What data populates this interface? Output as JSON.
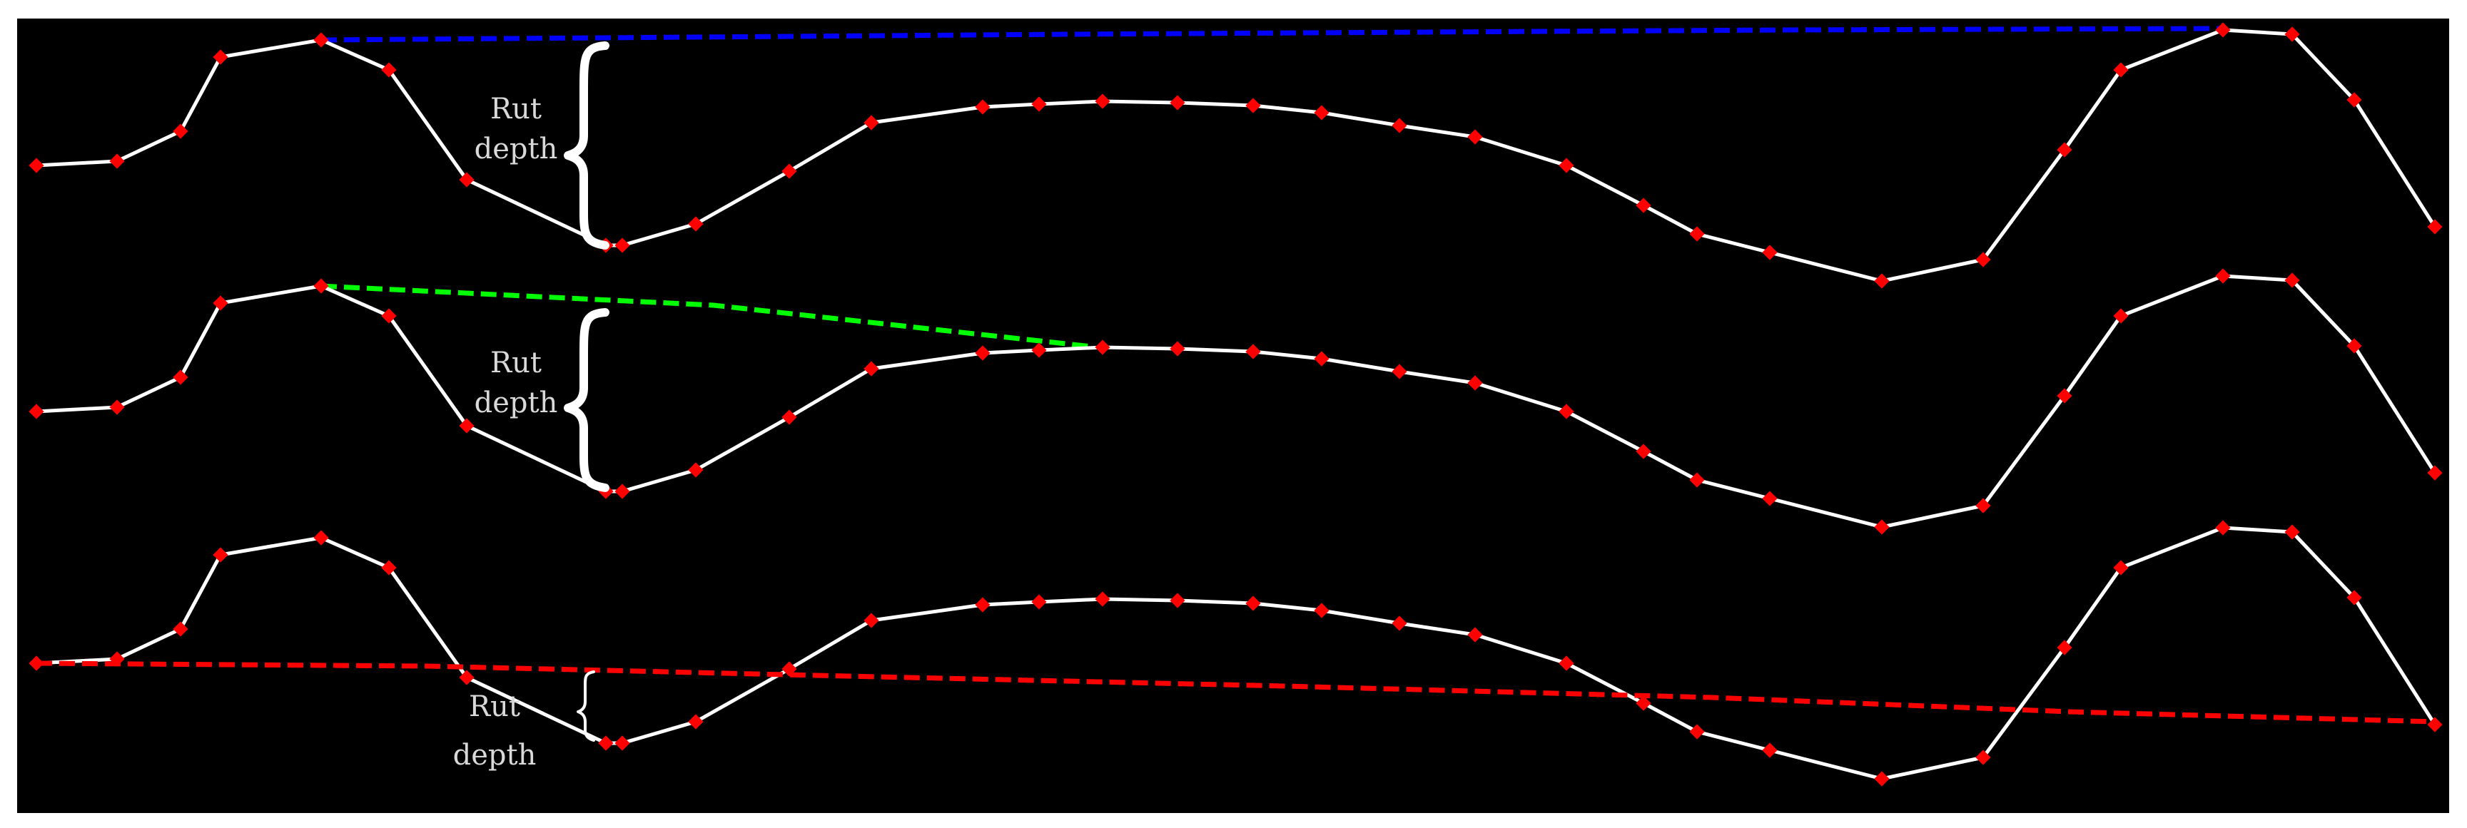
{
  "colors": {
    "background": "#000000",
    "frame": "#ffffff",
    "profile_line": "#ffffff",
    "profile_points": "#ff0000",
    "reference_line_1": "#0000ff",
    "reference_line_2": "#00ff00",
    "reference_line_3": "#ff0000",
    "label_text": "#d9d9d9"
  },
  "panels": [
    {
      "reference_line_style": "dashed",
      "reference_line_color": "#0000ff",
      "label_line1": "Rut",
      "label_line2": "depth"
    },
    {
      "reference_line_style": "dashed",
      "reference_line_color": "#00ff00",
      "label_line1": "Rut",
      "label_line2": "depth"
    },
    {
      "reference_line_style": "dashed",
      "reference_line_color": "#ff0000",
      "label_line1": "Rut",
      "label_line2": "depth"
    }
  ]
}
